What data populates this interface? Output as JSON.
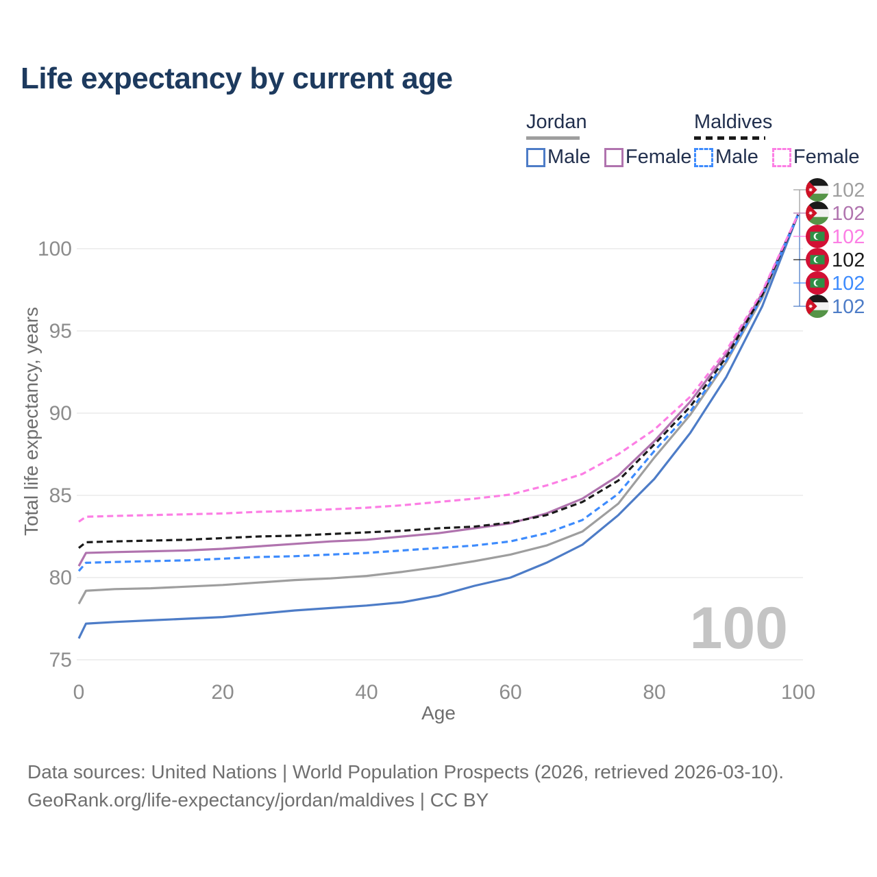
{
  "title": "Life expectancy by current age",
  "legend": {
    "groups": [
      {
        "name": "Jordan",
        "line_style": "solid",
        "underline_color": "#9e9e9e",
        "items": [
          {
            "label": "Male",
            "color": "#4d7cc7",
            "dashed": false
          },
          {
            "label": "Female",
            "color": "#b073ae",
            "dashed": false
          }
        ]
      },
      {
        "name": "Maldives",
        "line_style": "dashed",
        "underline_color": "#1a1a1a",
        "items": [
          {
            "label": "Male",
            "color": "#3d8bfd",
            "dashed": true
          },
          {
            "label": "Female",
            "color": "#fc7ee4",
            "dashed": true
          }
        ]
      }
    ]
  },
  "axes": {
    "x": {
      "label": "Age",
      "ticks": [
        0,
        20,
        40,
        60,
        80,
        100
      ],
      "range": [
        0,
        100
      ]
    },
    "y": {
      "label": "Total life expectancy, years",
      "ticks": [
        75,
        80,
        85,
        90,
        95,
        100
      ],
      "range": [
        75,
        102.5
      ]
    }
  },
  "end_labels": [
    {
      "flag": "jordan",
      "series": "jordan-both",
      "value": "102",
      "color": "#9e9e9e"
    },
    {
      "flag": "jordan",
      "series": "jordan-female",
      "value": "102",
      "color": "#b073ae"
    },
    {
      "flag": "maldives",
      "series": "maldives-female",
      "value": "102",
      "color": "#fc7ee4"
    },
    {
      "flag": "maldives",
      "series": "maldives-both",
      "value": "102",
      "color": "#1a1a1a"
    },
    {
      "flag": "maldives",
      "series": "maldives-male",
      "value": "102",
      "color": "#3d8bfd"
    },
    {
      "flag": "jordan",
      "series": "jordan-male",
      "value": "102",
      "color": "#4d7cc7"
    }
  ],
  "watermark": {
    "text": "100"
  },
  "footer": {
    "line1": "Data sources: United Nations | World Population Prospects (2026, retrieved 2026-03-10).",
    "line2": "GeoRank.org/life-expectancy/jordan/maldives | CC BY"
  },
  "colors": {
    "title": "#1d3a5e",
    "tick_label": "#8c8c8c",
    "axis_title": "#6e6e6e",
    "gridline": "#eaeaea",
    "watermark": "#c4c4c4",
    "footer": "#6f6f6f"
  },
  "chart_data": {
    "type": "line",
    "title": "Life expectancy by current age",
    "xlabel": "Age",
    "ylabel": "Total life expectancy, years",
    "xlim": [
      0,
      100
    ],
    "ylim": [
      75,
      102.5
    ],
    "grid": "horizontal-only",
    "legend_position": "top-right",
    "x": [
      0,
      1,
      5,
      10,
      15,
      20,
      25,
      30,
      35,
      40,
      45,
      50,
      55,
      60,
      65,
      70,
      75,
      80,
      85,
      90,
      95,
      100
    ],
    "series": [
      {
        "id": "jordan-male",
        "name": "Jordan Male",
        "color": "#4d7cc7",
        "dashed": false,
        "values": [
          76.3,
          77.2,
          77.3,
          77.4,
          77.5,
          77.6,
          77.8,
          78.0,
          78.15,
          78.3,
          78.5,
          78.9,
          79.5,
          80.0,
          80.9,
          82.0,
          83.8,
          86.0,
          88.8,
          92.2,
          96.5,
          102.1
        ]
      },
      {
        "id": "jordan-female",
        "name": "Jordan Female",
        "color": "#b073ae",
        "dashed": false,
        "values": [
          80.7,
          81.5,
          81.55,
          81.6,
          81.65,
          81.75,
          81.9,
          82.05,
          82.2,
          82.3,
          82.5,
          82.7,
          83.0,
          83.3,
          83.9,
          84.8,
          86.2,
          88.3,
          90.7,
          93.6,
          97.3,
          102.1
        ]
      },
      {
        "id": "jordan-both",
        "name": "Jordan Both sexes",
        "color": "#9e9e9e",
        "dashed": false,
        "values": [
          78.4,
          79.2,
          79.3,
          79.35,
          79.45,
          79.55,
          79.7,
          79.85,
          79.95,
          80.1,
          80.35,
          80.65,
          81.0,
          81.4,
          81.95,
          82.8,
          84.5,
          87.3,
          89.9,
          93.1,
          97.0,
          102.1
        ]
      },
      {
        "id": "maldives-male",
        "name": "Maldives Male",
        "color": "#3d8bfd",
        "dashed": true,
        "values": [
          80.4,
          80.9,
          80.95,
          81.0,
          81.05,
          81.15,
          81.25,
          81.3,
          81.4,
          81.5,
          81.65,
          81.8,
          81.95,
          82.2,
          82.7,
          83.5,
          85.1,
          87.7,
          90.1,
          93.2,
          97.1,
          102.1
        ]
      },
      {
        "id": "maldives-both",
        "name": "Maldives Both sexes",
        "color": "#1a1a1a",
        "dashed": true,
        "values": [
          81.8,
          82.15,
          82.2,
          82.25,
          82.3,
          82.4,
          82.5,
          82.55,
          82.65,
          82.75,
          82.85,
          83.0,
          83.1,
          83.35,
          83.8,
          84.6,
          85.9,
          88.1,
          90.4,
          93.4,
          97.2,
          102.1
        ]
      },
      {
        "id": "maldives-female",
        "name": "Maldives Female",
        "color": "#fc7ee4",
        "dashed": true,
        "values": [
          83.4,
          83.7,
          83.75,
          83.8,
          83.85,
          83.9,
          84.0,
          84.05,
          84.15,
          84.25,
          84.4,
          84.6,
          84.8,
          85.05,
          85.6,
          86.3,
          87.5,
          89.0,
          91.0,
          93.8,
          97.4,
          102.1
        ]
      }
    ],
    "end_value_labels": [
      102,
      102,
      102,
      102,
      102,
      102
    ]
  }
}
